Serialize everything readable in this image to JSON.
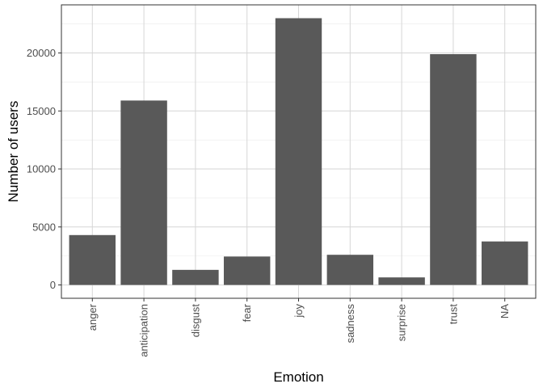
{
  "chart_data": {
    "type": "bar",
    "categories": [
      "anger",
      "anticipation",
      "disgust",
      "fear",
      "joy",
      "sadness",
      "surprise",
      "trust",
      "NA"
    ],
    "values": [
      4300,
      15900,
      1300,
      2450,
      23000,
      2600,
      650,
      19900,
      3750
    ],
    "xlabel": "Emotion",
    "ylabel": "Number of users",
    "ylim": [
      -1150,
      24150
    ],
    "yticks": [
      0,
      5000,
      10000,
      15000,
      20000
    ],
    "ytick_labels": [
      "0",
      "5000",
      "10000",
      "15000",
      "20000"
    ],
    "grid": true,
    "bar_color": "#595959"
  }
}
